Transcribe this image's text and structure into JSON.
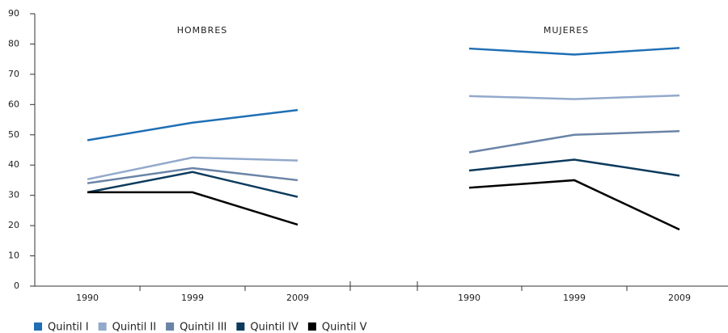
{
  "chart_data": {
    "type": "line",
    "annotations": [
      "HOMBRES",
      "MUJERES"
    ],
    "categories": [
      "1990",
      "1999",
      "2009",
      null,
      "1990",
      "1999",
      "2009"
    ],
    "ylim": [
      0,
      90
    ],
    "yticks": [
      0,
      10,
      20,
      30,
      40,
      50,
      60,
      70,
      80,
      90
    ],
    "series": [
      {
        "name": "Quintil I",
        "color": "#1f6fb5",
        "values": [
          48.2,
          54,
          58.2,
          null,
          78.5,
          76.5,
          78.7
        ]
      },
      {
        "name": "Quintil II",
        "color": "#93a9cc",
        "values": [
          35.3,
          42.5,
          41.5,
          null,
          62.8,
          61.8,
          63
        ]
      },
      {
        "name": "Quintil III",
        "color": "#6a84a6",
        "values": [
          34,
          39,
          35,
          null,
          44.2,
          50,
          51.2
        ]
      },
      {
        "name": "Quintil IV",
        "color": "#0b3a5c",
        "values": [
          31,
          37.7,
          29.5,
          null,
          38.2,
          41.8,
          36.5
        ]
      },
      {
        "name": "Quintil V",
        "color": "#000000",
        "values": [
          31,
          31,
          20.3,
          null,
          32.5,
          35,
          18.7
        ]
      }
    ]
  }
}
